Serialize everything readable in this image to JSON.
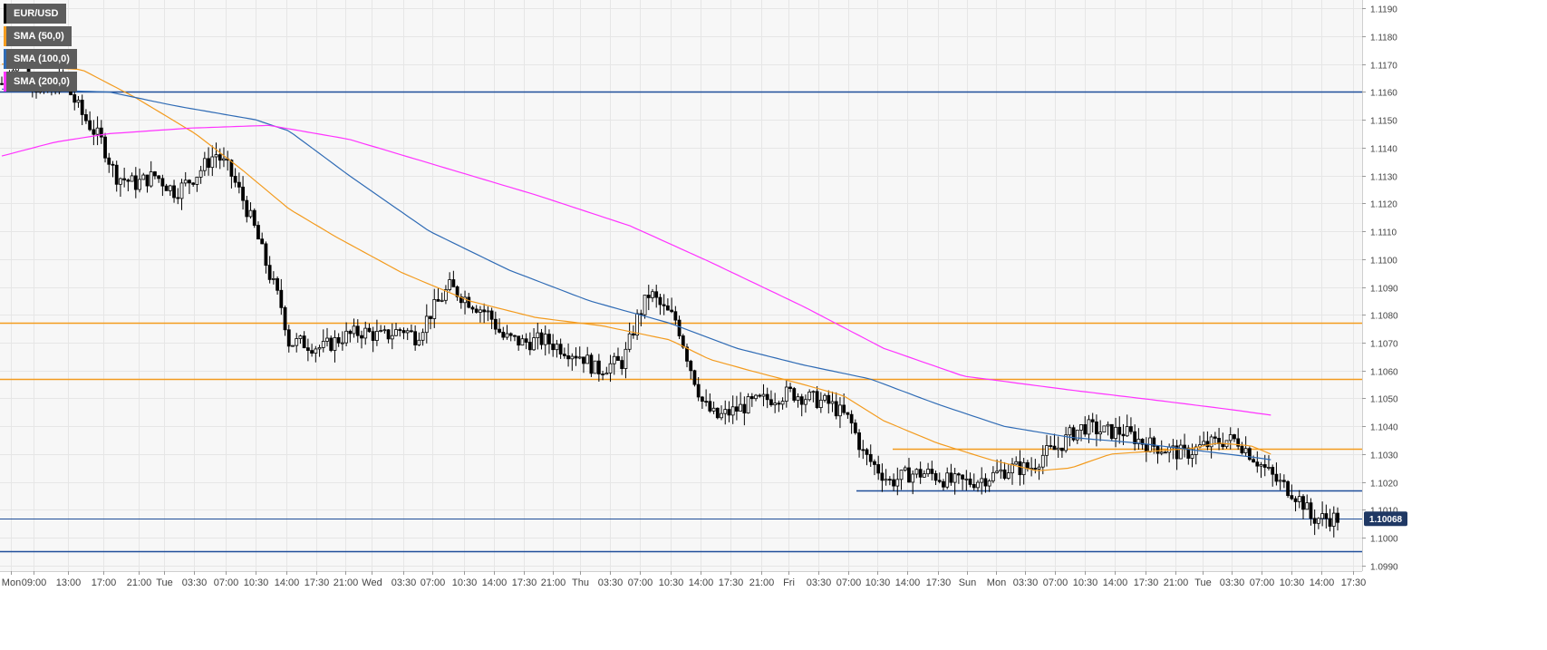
{
  "symbol": "EUR/USD",
  "legend": [
    {
      "label": "EUR/USD",
      "color": "#000000"
    },
    {
      "label": "SMA (50,0)",
      "color": "#f39b1e"
    },
    {
      "label": "SMA (100,0)",
      "color": "#2f6bb5"
    },
    {
      "label": "SMA (200,0)",
      "color": "#ff33ff"
    }
  ],
  "colors": {
    "background": "#f7f7f7",
    "grid": "#e6e6e6",
    "candle_up": "#ffffff",
    "candle_down": "#000000",
    "support_resistance_blue": "#1f4e99",
    "support_resistance_orange": "#f39b1e",
    "price_label_bg": "#1f3864"
  },
  "chart_data": {
    "type": "candlestick",
    "title": "",
    "xlabel": "",
    "ylabel": "",
    "ylim": [
      1.0988,
      1.1193
    ],
    "y_ticks": [
      "1.0990",
      "1.1000",
      "1.1010",
      "1.1020",
      "1.1030",
      "1.1040",
      "1.1050",
      "1.1060",
      "1.1070",
      "1.1080",
      "1.1090",
      "1.1100",
      "1.1110",
      "1.1120",
      "1.1130",
      "1.1140",
      "1.1150",
      "1.1160",
      "1.1170",
      "1.1180",
      "1.1190"
    ],
    "x_ticks": [
      "Mon",
      "09:00",
      "13:00",
      "17:00",
      "21:00",
      "Tue",
      "03:30",
      "07:00",
      "10:30",
      "14:00",
      "17:30",
      "21:00",
      "Wed",
      "03:30",
      "07:00",
      "10:30",
      "14:00",
      "17:30",
      "21:00",
      "Thu",
      "03:30",
      "07:00",
      "10:30",
      "14:00",
      "17:30",
      "21:00",
      "Fri",
      "03:30",
      "07:00",
      "10:30",
      "14:00",
      "17:30",
      "Sun",
      "Mon",
      "03:30",
      "07:00",
      "10:30",
      "14:00",
      "17:30",
      "21:00",
      "Tue",
      "03:30",
      "07:00",
      "10:30",
      "14:00",
      "17:30"
    ],
    "current_price": "1.10068",
    "horizontal_levels": [
      {
        "value": 1.116,
        "color": "blue"
      },
      {
        "value": 1.1077,
        "color": "orange"
      },
      {
        "value": 1.1057,
        "color": "orange"
      },
      {
        "value": 1.1007,
        "color": "blue-thin"
      },
      {
        "value": 1.0995,
        "color": "blue"
      }
    ],
    "segment_levels": [
      {
        "value": 1.1032,
        "color": "orange",
        "from_tick": "10:30"
      },
      {
        "value": 1.1017,
        "color": "blue",
        "from_tick": "07:00"
      }
    ],
    "price_path_anchors": [
      [
        0,
        1.1163
      ],
      [
        0.015,
        1.1172
      ],
      [
        0.03,
        1.1158
      ],
      [
        0.045,
        1.1165
      ],
      [
        0.06,
        1.1152
      ],
      [
        0.075,
        1.1142
      ],
      [
        0.085,
        1.113
      ],
      [
        0.1,
        1.1127
      ],
      [
        0.115,
        1.113
      ],
      [
        0.13,
        1.1124
      ],
      [
        0.145,
        1.113
      ],
      [
        0.16,
        1.1138
      ],
      [
        0.17,
        1.1132
      ],
      [
        0.18,
        1.1122
      ],
      [
        0.19,
        1.111
      ],
      [
        0.2,
        1.1095
      ],
      [
        0.21,
        1.1082
      ],
      [
        0.215,
        1.107
      ],
      [
        0.225,
        1.107
      ],
      [
        0.24,
        1.1068
      ],
      [
        0.255,
        1.1072
      ],
      [
        0.27,
        1.1074
      ],
      [
        0.285,
        1.1072
      ],
      [
        0.3,
        1.1075
      ],
      [
        0.31,
        1.1072
      ],
      [
        0.32,
        1.108
      ],
      [
        0.335,
        1.109
      ],
      [
        0.35,
        1.1085
      ],
      [
        0.365,
        1.108
      ],
      [
        0.375,
        1.1072
      ],
      [
        0.39,
        1.107
      ],
      [
        0.405,
        1.1071
      ],
      [
        0.42,
        1.1068
      ],
      [
        0.435,
        1.1065
      ],
      [
        0.445,
        1.106
      ],
      [
        0.455,
        1.1062
      ],
      [
        0.465,
        1.1063
      ],
      [
        0.475,
        1.1078
      ],
      [
        0.485,
        1.1088
      ],
      [
        0.495,
        1.1082
      ],
      [
        0.505,
        1.1078
      ],
      [
        0.515,
        1.1062
      ],
      [
        0.525,
        1.1048
      ],
      [
        0.535,
        1.1043
      ],
      [
        0.545,
        1.1045
      ],
      [
        0.56,
        1.1048
      ],
      [
        0.575,
        1.105
      ],
      [
        0.59,
        1.1052
      ],
      [
        0.605,
        1.105
      ],
      [
        0.62,
        1.1048
      ],
      [
        0.635,
        1.1042
      ],
      [
        0.645,
        1.103
      ],
      [
        0.655,
        1.1025
      ],
      [
        0.665,
        1.102
      ],
      [
        0.68,
        1.1023
      ],
      [
        0.695,
        1.1023
      ],
      [
        0.71,
        1.102
      ],
      [
        0.725,
        1.102
      ],
      [
        0.74,
        1.1022
      ],
      [
        0.755,
        1.1025
      ],
      [
        0.77,
        1.1025
      ],
      [
        0.78,
        1.103
      ],
      [
        0.79,
        1.1032
      ],
      [
        0.8,
        1.1037
      ],
      [
        0.81,
        1.104
      ],
      [
        0.825,
        1.1038
      ],
      [
        0.84,
        1.1038
      ],
      [
        0.855,
        1.1034
      ],
      [
        0.87,
        1.1032
      ],
      [
        0.885,
        1.103
      ],
      [
        0.9,
        1.1033
      ],
      [
        0.915,
        1.1035
      ],
      [
        0.925,
        1.1035
      ],
      [
        0.935,
        1.103
      ],
      [
        0.945,
        1.1025
      ],
      [
        0.955,
        1.102
      ],
      [
        0.965,
        1.1017
      ],
      [
        0.975,
        1.1012
      ],
      [
        0.98,
        1.1007
      ]
    ],
    "series": [
      {
        "name": "SMA (50,0)",
        "anchors": [
          [
            0,
            1.117
          ],
          [
            0.06,
            1.1168
          ],
          [
            0.1,
            1.1158
          ],
          [
            0.145,
            1.1145
          ],
          [
            0.18,
            1.1132
          ],
          [
            0.215,
            1.1118
          ],
          [
            0.25,
            1.1108
          ],
          [
            0.3,
            1.1095
          ],
          [
            0.35,
            1.1085
          ],
          [
            0.4,
            1.1079
          ],
          [
            0.45,
            1.1076
          ],
          [
            0.5,
            1.1071
          ],
          [
            0.53,
            1.1064
          ],
          [
            0.56,
            1.106
          ],
          [
            0.6,
            1.1055
          ],
          [
            0.63,
            1.1051
          ],
          [
            0.66,
            1.1042
          ],
          [
            0.7,
            1.1034
          ],
          [
            0.74,
            1.1028
          ],
          [
            0.775,
            1.1024
          ],
          [
            0.8,
            1.1025
          ],
          [
            0.83,
            1.103
          ],
          [
            0.86,
            1.1031
          ],
          [
            0.89,
            1.1032
          ],
          [
            0.91,
            1.1034
          ],
          [
            0.935,
            1.1033
          ],
          [
            0.95,
            1.103
          ]
        ]
      },
      {
        "name": "SMA (100,0)",
        "anchors": [
          [
            0,
            1.1161
          ],
          [
            0.08,
            1.116
          ],
          [
            0.13,
            1.1155
          ],
          [
            0.19,
            1.115
          ],
          [
            0.215,
            1.1146
          ],
          [
            0.26,
            1.113
          ],
          [
            0.32,
            1.111
          ],
          [
            0.38,
            1.1096
          ],
          [
            0.44,
            1.1085
          ],
          [
            0.5,
            1.1077
          ],
          [
            0.55,
            1.1068
          ],
          [
            0.6,
            1.1062
          ],
          [
            0.65,
            1.1057
          ],
          [
            0.7,
            1.1048
          ],
          [
            0.75,
            1.104
          ],
          [
            0.8,
            1.1036
          ],
          [
            0.85,
            1.1034
          ],
          [
            0.9,
            1.1031
          ],
          [
            0.935,
            1.1029
          ],
          [
            0.95,
            1.1028
          ]
        ]
      },
      {
        "name": "SMA (200,0)",
        "anchors": [
          [
            0,
            1.1137
          ],
          [
            0.04,
            1.1142
          ],
          [
            0.08,
            1.1145
          ],
          [
            0.14,
            1.1147
          ],
          [
            0.2,
            1.1148
          ],
          [
            0.26,
            1.1143
          ],
          [
            0.33,
            1.1133
          ],
          [
            0.4,
            1.1123
          ],
          [
            0.47,
            1.1112
          ],
          [
            0.53,
            1.1099
          ],
          [
            0.6,
            1.1083
          ],
          [
            0.66,
            1.1068
          ],
          [
            0.72,
            1.1058
          ],
          [
            0.8,
            1.1053
          ],
          [
            0.87,
            1.1049
          ],
          [
            0.92,
            1.1046
          ],
          [
            0.95,
            1.1044
          ]
        ]
      }
    ]
  }
}
